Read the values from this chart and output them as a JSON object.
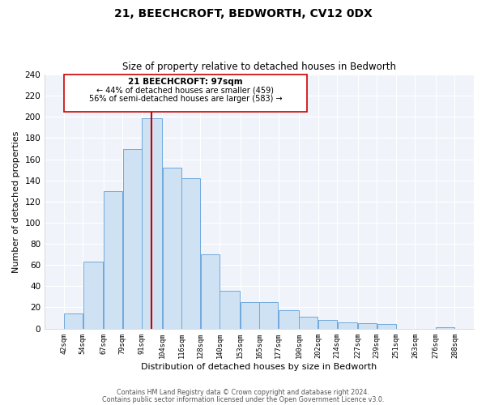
{
  "title1": "21, BEECHCROFT, BEDWORTH, CV12 0DX",
  "title2": "Size of property relative to detached houses in Bedworth",
  "xlabel": "Distribution of detached houses by size in Bedworth",
  "ylabel": "Number of detached properties",
  "bar_left_edges": [
    42,
    54,
    67,
    79,
    91,
    104,
    116,
    128,
    140,
    153,
    165,
    177,
    190,
    202,
    214,
    227,
    239,
    251,
    263,
    276
  ],
  "bar_heights": [
    14,
    63,
    130,
    170,
    199,
    152,
    142,
    70,
    36,
    25,
    25,
    17,
    11,
    8,
    6,
    5,
    4,
    0,
    0,
    1
  ],
  "bar_widths": [
    12,
    13,
    12,
    12,
    13,
    12,
    12,
    12,
    13,
    12,
    12,
    13,
    12,
    12,
    13,
    12,
    12,
    12,
    13,
    12
  ],
  "tick_labels": [
    "42sqm",
    "54sqm",
    "67sqm",
    "79sqm",
    "91sqm",
    "104sqm",
    "116sqm",
    "128sqm",
    "140sqm",
    "153sqm",
    "165sqm",
    "177sqm",
    "190sqm",
    "202sqm",
    "214sqm",
    "227sqm",
    "239sqm",
    "251sqm",
    "263sqm",
    "276sqm",
    "288sqm"
  ],
  "tick_positions": [
    42,
    54,
    67,
    79,
    91,
    104,
    116,
    128,
    140,
    153,
    165,
    177,
    190,
    202,
    214,
    227,
    239,
    251,
    263,
    276,
    288
  ],
  "bar_color": "#cfe2f3",
  "bar_edge_color": "#6fa8dc",
  "vline_x": 97,
  "vline_color": "#cc0000",
  "annotation_title": "21 BEECHCROFT: 97sqm",
  "annotation_line1": "← 44% of detached houses are smaller (459)",
  "annotation_line2": "56% of semi-detached houses are larger (583) →",
  "ylim": [
    0,
    240
  ],
  "xlim": [
    30,
    300
  ],
  "yticks": [
    0,
    20,
    40,
    60,
    80,
    100,
    120,
    140,
    160,
    180,
    200,
    220,
    240
  ],
  "footer1": "Contains HM Land Registry data © Crown copyright and database right 2024.",
  "footer2": "Contains public sector information licensed under the Open Government Licence v3.0.",
  "bg_color": "#f0f4fa"
}
